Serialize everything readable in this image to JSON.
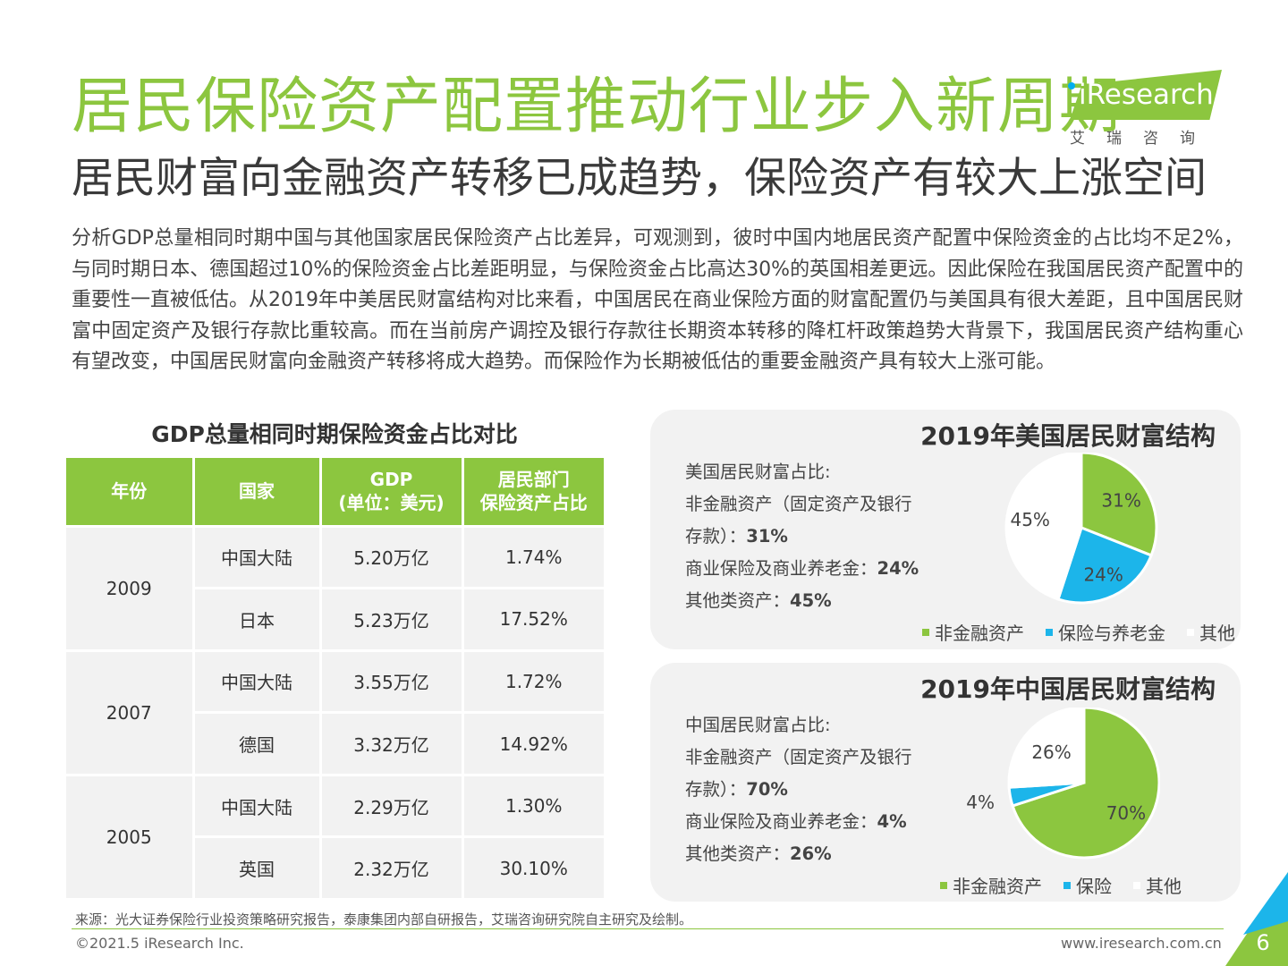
{
  "header": {
    "title": "居民保险资产配置推动行业步入新周期",
    "subtitle": "居民财富向金融资产转移已成趋势，保险资产有较大上涨空间"
  },
  "logo": {
    "brand": "iResearch",
    "brand_cn": "艾瑞咨询"
  },
  "body_text": "分析GDP总量相同时期中国与其他国家居民保险资产占比差异，可观测到，彼时中国内地居民资产配置中保险资金的占比均不足2%，与同时期日本、德国超过10%的保险资金占比差距明显，与保险资金占比高达30%的英国相差更远。因此保险在我国居民资产配置中的重要性一直被低估。从2019年中美居民财富结构对比来看，中国居民在商业保险方面的财富配置仍与美国具有很大差距，且中国居民财富中固定资产及银行存款比重较高。而在当前房产调控及银行存款往长期资本转移的降杠杆政策趋势大背景下，我国居民资产结构重心有望改变，中国居民财富向金融资产转移将成大趋势。而保险作为长期被低估的重要金融资产具有较大上涨可能。",
  "table": {
    "title": "GDP总量相同时期保险资金占比对比",
    "headers": {
      "year": "年份",
      "country": "国家",
      "gdp_line1": "GDP",
      "gdp_line2": "(单位：美元)",
      "share_line1": "居民部门",
      "share_line2": "保险资产占比"
    },
    "groups": [
      {
        "year": "2009",
        "rows": [
          {
            "country": "中国大陆",
            "gdp": "5.20万亿",
            "share": "1.74%"
          },
          {
            "country": "日本",
            "gdp": "5.23万亿",
            "share": "17.52%"
          }
        ]
      },
      {
        "year": "2007",
        "rows": [
          {
            "country": "中国大陆",
            "gdp": "3.55万亿",
            "share": "1.72%"
          },
          {
            "country": "德国",
            "gdp": "3.32万亿",
            "share": "14.92%"
          }
        ]
      },
      {
        "year": "2005",
        "rows": [
          {
            "country": "中国大陆",
            "gdp": "2.29万亿",
            "share": "1.30%"
          },
          {
            "country": "英国",
            "gdp": "2.32万亿",
            "share": "30.10%"
          }
        ]
      }
    ]
  },
  "us_panel": {
    "title": "2019年美国居民财富结构",
    "intro": "美国居民财富占比:",
    "line1": "非金融资产（固定资产及银行",
    "line2_prefix": "存款）：",
    "line2_value": "31%",
    "line3_prefix": "商业保险及商业养老金：",
    "line3_value": "24%",
    "line4_prefix": "其他类资产：",
    "line4_value": "45%"
  },
  "cn_panel": {
    "title": "2019年中国居民财富结构",
    "intro": "中国居民财富占比:",
    "line1": "非金融资产（固定资产及银行",
    "line2_prefix": "存款）：",
    "line2_value": "70%",
    "line3_prefix": "商业保险及商业养老金：",
    "line3_value": "4%",
    "line4_prefix": "其他类资产：",
    "line4_value": "26%"
  },
  "chart_data": [
    {
      "type": "pie",
      "title": "2019年美国居民财富结构",
      "categories": [
        "非金融资产",
        "保险与养老金",
        "其他"
      ],
      "values": [
        31,
        24,
        45
      ],
      "labels": [
        "31%",
        "24%",
        "45%"
      ],
      "colors": [
        "#8cc63f",
        "#1cb5ea",
        "#ffffff"
      ],
      "legend": "bottom"
    },
    {
      "type": "pie",
      "title": "2019年中国居民财富结构",
      "categories": [
        "非金融资产",
        "保险",
        "其他"
      ],
      "values": [
        70,
        4,
        26
      ],
      "labels": [
        "70%",
        "4%",
        "26%"
      ],
      "colors": [
        "#8cc63f",
        "#1cb5ea",
        "#ffffff"
      ],
      "legend": "bottom"
    }
  ],
  "footer": {
    "source": "来源：光大证券保险行业投资策略研究报告，泰康集团内部自研报告，艾瑞咨询研究院自主研究及绘制。",
    "copyright": "©2021.5 iResearch Inc.",
    "website": "www.iresearch.com.cn",
    "page_number": "6"
  }
}
